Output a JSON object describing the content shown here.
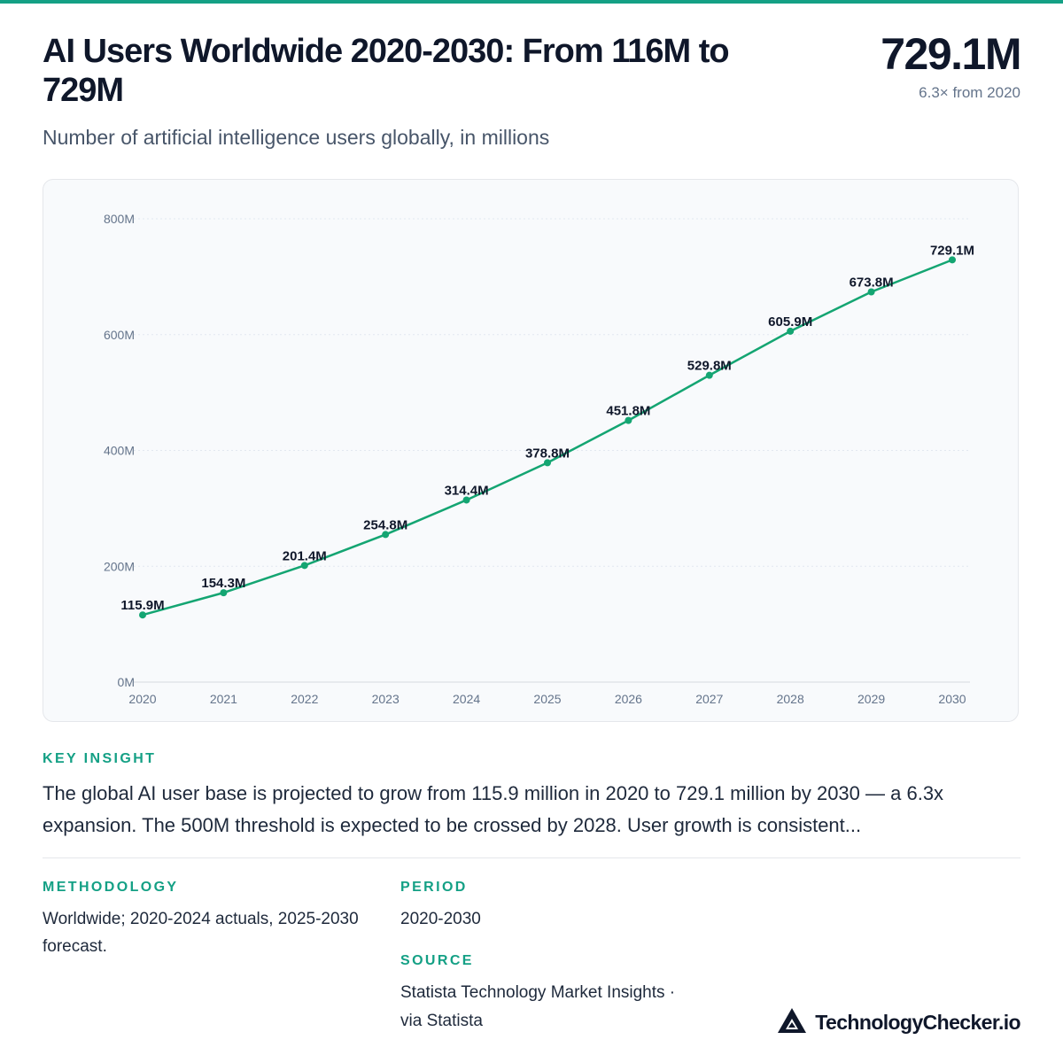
{
  "header": {
    "title": "AI Users Worldwide 2020-2030: From 116M to 729M",
    "subtitle": "Number of artificial intelligence users globally, in millions",
    "headline_value": "729.1M",
    "headline_sub": "6.3× from 2020"
  },
  "chart_data": {
    "type": "line",
    "title": "",
    "xlabel": "",
    "ylabel": "",
    "x": [
      "2020",
      "2021",
      "2022",
      "2023",
      "2024",
      "2025",
      "2026",
      "2027",
      "2028",
      "2029",
      "2030"
    ],
    "values": [
      115.9,
      154.3,
      201.4,
      254.8,
      314.4,
      378.8,
      451.8,
      529.8,
      605.9,
      673.8,
      729.1
    ],
    "data_labels": [
      "115.9M",
      "154.3M",
      "201.4M",
      "254.8M",
      "314.4M",
      "378.8M",
      "451.8M",
      "529.8M",
      "605.9M",
      "673.8M",
      "729.1M"
    ],
    "yticks": [
      0,
      200,
      400,
      600,
      800
    ],
    "ytick_labels": [
      "0M",
      "200M",
      "400M",
      "600M",
      "800M"
    ],
    "ylim": [
      0,
      800
    ],
    "grid": true,
    "line_color": "#14a572"
  },
  "insight": {
    "label": "KEY INSIGHT",
    "text": "The global AI user base is projected to grow from 115.9 million in 2020 to 729.1 million by 2030 — a 6.3x expansion. The 500M threshold is expected to be crossed by 2028. User growth is consistent..."
  },
  "methodology": {
    "label": "METHODOLOGY",
    "text": "Worldwide; 2020-2024 actuals, 2025-2030 forecast."
  },
  "period": {
    "label": "PERIOD",
    "text": "2020-2030"
  },
  "source": {
    "label": "SOURCE",
    "line1": "Statista Technology Market Insights ·",
    "line2": "via Statista"
  },
  "brand": {
    "name": "TechnologyChecker.io",
    "logo_icon": "triangle-logo-icon"
  },
  "colors": {
    "accent": "#14a085",
    "line": "#14a572",
    "text": "#0f172a"
  }
}
